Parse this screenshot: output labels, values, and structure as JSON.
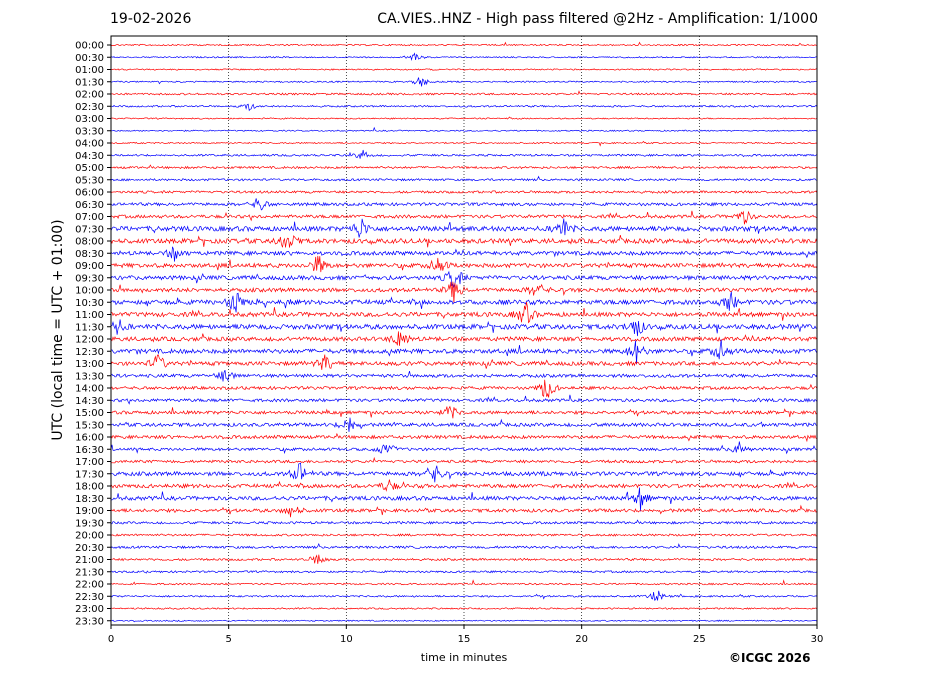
{
  "header": {
    "date": "19-02-2026",
    "title": "CA.VIES..HNZ - High pass filtered @2Hz - Amplification: 1/1000"
  },
  "footer": {
    "copyright": "©ICGC 2026"
  },
  "chart_data": {
    "type": "line",
    "title": "CA.VIES..HNZ - High pass filtered @2Hz - Amplification: 1/1000",
    "xlabel": "time in minutes",
    "ylabel": "UTC (local time = UTC + 01:00)",
    "xlim": [
      0,
      30
    ],
    "x_ticks": [
      0,
      5,
      10,
      15,
      20,
      25,
      30
    ],
    "x_tick_labels": [
      "0",
      "5",
      "10",
      "15",
      "20",
      "25",
      "30"
    ],
    "vertical_gridlines_at": [
      5,
      10,
      15,
      20,
      25
    ],
    "grid": "vertical dotted",
    "row_labels": [
      "00:00",
      "00:30",
      "01:00",
      "01:30",
      "02:00",
      "02:30",
      "03:00",
      "03:30",
      "04:00",
      "04:30",
      "05:00",
      "05:30",
      "06:00",
      "06:30",
      "07:00",
      "07:30",
      "08:00",
      "08:30",
      "09:00",
      "09:30",
      "10:00",
      "10:30",
      "11:00",
      "11:30",
      "12:00",
      "12:30",
      "13:00",
      "13:30",
      "14:00",
      "14:30",
      "15:00",
      "15:30",
      "16:00",
      "16:30",
      "17:00",
      "17:30",
      "18:00",
      "18:30",
      "19:00",
      "19:30",
      "20:00",
      "20:30",
      "21:00",
      "21:30",
      "22:00",
      "22:30",
      "23:00",
      "23:30"
    ],
    "series_colors": [
      "#ff0000",
      "#0000ff"
    ],
    "row_activity": [
      0.15,
      0.12,
      0.12,
      0.14,
      0.25,
      0.2,
      0.1,
      0.1,
      0.12,
      0.25,
      0.3,
      0.3,
      0.35,
      0.5,
      0.55,
      0.9,
      0.85,
      0.7,
      0.75,
      0.75,
      0.7,
      0.85,
      0.8,
      0.9,
      0.75,
      0.8,
      0.7,
      0.55,
      0.5,
      0.5,
      0.55,
      0.6,
      0.55,
      0.45,
      0.45,
      0.7,
      0.65,
      0.7,
      0.55,
      0.35,
      0.3,
      0.35,
      0.3,
      0.25,
      0.2,
      0.2,
      0.15,
      0.1
    ],
    "events": [
      {
        "row": "00:30",
        "minute": 12.9,
        "amp": 0.3
      },
      {
        "row": "01:30",
        "minute": 13.2,
        "amp": 0.5
      },
      {
        "row": "02:30",
        "minute": 5.9,
        "amp": 0.3
      },
      {
        "row": "04:30",
        "minute": 10.7,
        "amp": 0.4
      },
      {
        "row": "06:30",
        "minute": 6.3,
        "amp": 0.6
      },
      {
        "row": "07:00",
        "minute": 26.9,
        "amp": 0.6
      },
      {
        "row": "07:30",
        "minute": 10.6,
        "amp": 0.9
      },
      {
        "row": "07:30",
        "minute": 19.2,
        "amp": 0.8
      },
      {
        "row": "08:00",
        "minute": 7.5,
        "amp": 0.9
      },
      {
        "row": "08:30",
        "minute": 2.7,
        "amp": 0.5
      },
      {
        "row": "09:00",
        "minute": 8.8,
        "amp": 0.8
      },
      {
        "row": "09:00",
        "minute": 13.9,
        "amp": 0.7
      },
      {
        "row": "09:30",
        "minute": 14.6,
        "amp": 1.0
      },
      {
        "row": "10:00",
        "minute": 14.6,
        "amp": 1.0
      },
      {
        "row": "10:00",
        "minute": 18.1,
        "amp": 0.7
      },
      {
        "row": "10:30",
        "minute": 5.3,
        "amp": 1.0
      },
      {
        "row": "10:30",
        "minute": 26.3,
        "amp": 0.8
      },
      {
        "row": "11:00",
        "minute": 17.6,
        "amp": 1.0
      },
      {
        "row": "11:30",
        "minute": 0.2,
        "amp": 0.9
      },
      {
        "row": "11:30",
        "minute": 22.3,
        "amp": 0.9
      },
      {
        "row": "12:00",
        "minute": 12.3,
        "amp": 0.9
      },
      {
        "row": "12:30",
        "minute": 22.3,
        "amp": 0.9
      },
      {
        "row": "12:30",
        "minute": 25.9,
        "amp": 0.8
      },
      {
        "row": "13:00",
        "minute": 2.0,
        "amp": 0.7
      },
      {
        "row": "13:00",
        "minute": 9.1,
        "amp": 0.7
      },
      {
        "row": "13:30",
        "minute": 4.9,
        "amp": 0.6
      },
      {
        "row": "14:00",
        "minute": 18.5,
        "amp": 1.0
      },
      {
        "row": "15:00",
        "minute": 14.4,
        "amp": 0.6
      },
      {
        "row": "15:30",
        "minute": 10.1,
        "amp": 0.8
      },
      {
        "row": "16:30",
        "minute": 11.7,
        "amp": 0.7
      },
      {
        "row": "16:30",
        "minute": 26.7,
        "amp": 0.5
      },
      {
        "row": "17:30",
        "minute": 8.0,
        "amp": 0.9
      },
      {
        "row": "17:30",
        "minute": 13.7,
        "amp": 0.9
      },
      {
        "row": "18:00",
        "minute": 11.8,
        "amp": 0.5
      },
      {
        "row": "18:30",
        "minute": 22.5,
        "amp": 0.8
      },
      {
        "row": "19:00",
        "minute": 7.7,
        "amp": 0.6
      },
      {
        "row": "21:00",
        "minute": 8.8,
        "amp": 0.5
      },
      {
        "row": "22:30",
        "minute": 23.2,
        "amp": 0.5
      }
    ]
  }
}
